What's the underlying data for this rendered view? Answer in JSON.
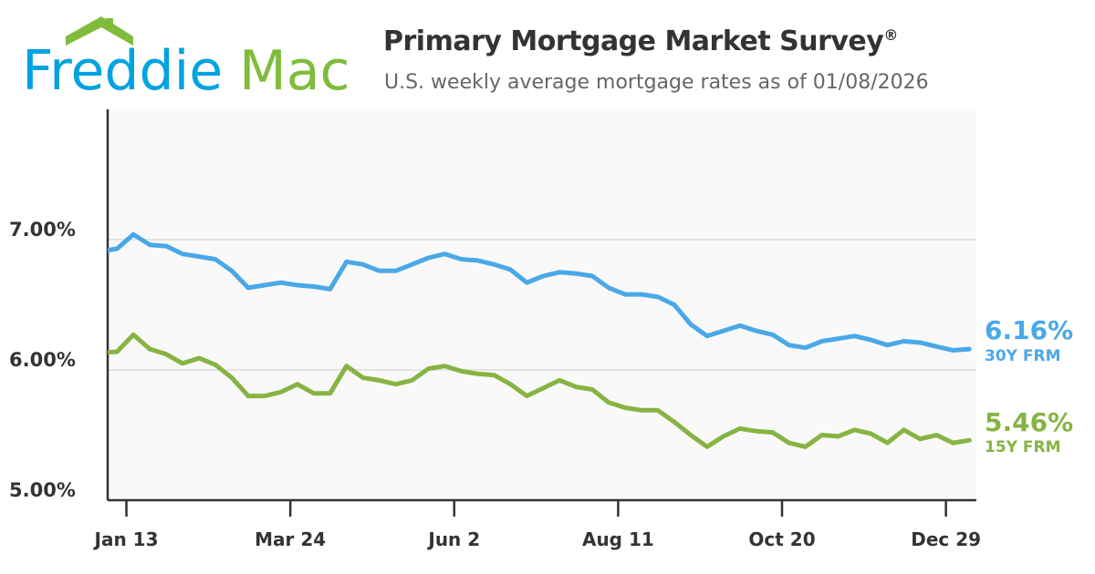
{
  "logo": {
    "text_part1": "Freddie",
    "text_part2": "Mac",
    "colors": {
      "blue": "#00a3e0",
      "green": "#80bc3c"
    }
  },
  "header": {
    "title": "Primary Mortgage Market Survey",
    "title_mark": "®",
    "subtitle": "U.S. weekly average mortgage rates as of 01/08/2026"
  },
  "chart_data": {
    "type": "line",
    "title": "Primary Mortgage Market Survey®",
    "subtitle": "U.S. weekly average mortgage rates as of 01/08/2026",
    "xlabel": "",
    "ylabel": "",
    "ylim": [
      5,
      8
    ],
    "xlim": [
      "2025-01-05",
      "2026-01-11"
    ],
    "grid": "horizontal",
    "yticks": [
      {
        "value": 5,
        "label": "5.00%"
      },
      {
        "value": 6,
        "label": "6.00%"
      },
      {
        "value": 7,
        "label": "7.00%"
      }
    ],
    "xticks": [
      {
        "date": "2025-01-13",
        "label": "Jan 13"
      },
      {
        "date": "2025-03-24",
        "label": "Mar 24"
      },
      {
        "date": "2025-06-02",
        "label": "Jun 2"
      },
      {
        "date": "2025-08-11",
        "label": "Aug 11"
      },
      {
        "date": "2025-10-20",
        "label": "Oct 20"
      },
      {
        "date": "2025-12-29",
        "label": "Dec 29"
      }
    ],
    "x": [
      "2025-01-02",
      "2025-01-09",
      "2025-01-16",
      "2025-01-23",
      "2025-01-30",
      "2025-02-06",
      "2025-02-13",
      "2025-02-20",
      "2025-02-27",
      "2025-03-06",
      "2025-03-13",
      "2025-03-20",
      "2025-03-27",
      "2025-04-03",
      "2025-04-10",
      "2025-04-17",
      "2025-04-24",
      "2025-05-01",
      "2025-05-08",
      "2025-05-15",
      "2025-05-22",
      "2025-05-29",
      "2025-06-05",
      "2025-06-12",
      "2025-06-19",
      "2025-06-26",
      "2025-07-03",
      "2025-07-10",
      "2025-07-17",
      "2025-07-24",
      "2025-07-31",
      "2025-08-07",
      "2025-08-14",
      "2025-08-21",
      "2025-08-28",
      "2025-09-04",
      "2025-09-11",
      "2025-09-18",
      "2025-09-25",
      "2025-10-02",
      "2025-10-09",
      "2025-10-16",
      "2025-10-23",
      "2025-10-30",
      "2025-11-06",
      "2025-11-13",
      "2025-11-20",
      "2025-11-27",
      "2025-12-04",
      "2025-12-11",
      "2025-12-18",
      "2025-12-25",
      "2026-01-01",
      "2026-01-08"
    ],
    "series": [
      {
        "name": "30Y FRM",
        "color": "#4aa8e8",
        "latest_label": "6.16%",
        "values": [
          6.91,
          6.93,
          7.04,
          6.96,
          6.95,
          6.89,
          6.87,
          6.85,
          6.76,
          6.63,
          6.65,
          6.67,
          6.65,
          6.64,
          6.62,
          6.83,
          6.81,
          6.76,
          6.76,
          6.81,
          6.86,
          6.89,
          6.85,
          6.84,
          6.81,
          6.77,
          6.67,
          6.72,
          6.75,
          6.74,
          6.72,
          6.63,
          6.58,
          6.58,
          6.56,
          6.5,
          6.35,
          6.26,
          6.3,
          6.34,
          6.3,
          6.27,
          6.19,
          6.17,
          6.22,
          6.24,
          6.26,
          6.23,
          6.19,
          6.22,
          6.21,
          6.18,
          6.15,
          6.16
        ]
      },
      {
        "name": "15Y FRM",
        "color": "#86b443",
        "latest_label": "5.46%",
        "values": [
          6.13,
          6.14,
          6.27,
          6.16,
          6.12,
          6.05,
          6.09,
          6.04,
          5.94,
          5.8,
          5.8,
          5.83,
          5.89,
          5.82,
          5.82,
          6.03,
          5.94,
          5.92,
          5.89,
          5.92,
          6.01,
          6.03,
          5.99,
          5.97,
          5.96,
          5.89,
          5.8,
          5.86,
          5.92,
          5.87,
          5.85,
          5.75,
          5.71,
          5.69,
          5.69,
          5.6,
          5.5,
          5.41,
          5.49,
          5.55,
          5.53,
          5.52,
          5.44,
          5.41,
          5.5,
          5.49,
          5.54,
          5.51,
          5.44,
          5.54,
          5.47,
          5.5,
          5.44,
          5.46
        ]
      }
    ]
  }
}
